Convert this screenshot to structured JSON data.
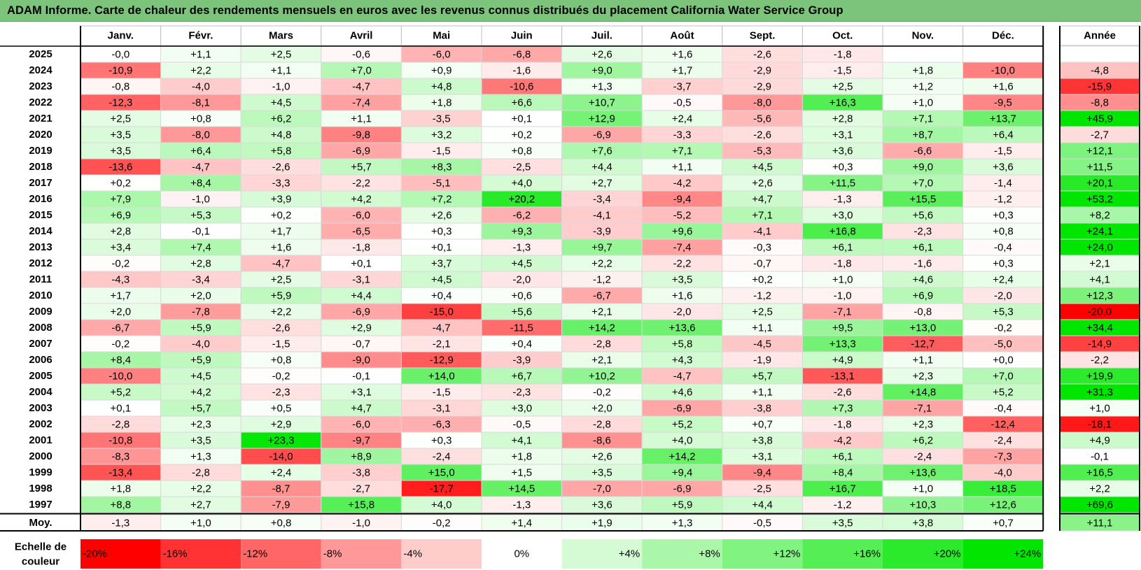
{
  "title": "ADAM Informe. Carte de chaleur des rendements mensuels en euros avec les revenus connus distribués du placement California Water Service Group",
  "chart_data": {
    "type": "heatmap",
    "title": "ADAM Informe. Carte de chaleur des rendements mensuels en euros avec les revenus connus distribués du placement California Water Service Group",
    "columns": [
      "Janv.",
      "Févr.",
      "Mars",
      "Avril",
      "Mai",
      "Juin",
      "Juil.",
      "Août",
      "Sept.",
      "Oct.",
      "Nov.",
      "Déc."
    ],
    "year_header": "Année",
    "rows": [
      {
        "label": "2025",
        "values": [
          "-0,0",
          "+1,1",
          "+2,5",
          "-0,6",
          "-6,0",
          "-6,8",
          "+2,6",
          "+1,6",
          "-2,6",
          "-1,8",
          "",
          ""
        ],
        "year": ""
      },
      {
        "label": "2024",
        "values": [
          "-10,9",
          "+2,2",
          "+1,1",
          "+7,0",
          "+0,9",
          "-1,6",
          "+9,0",
          "+1,7",
          "-2,9",
          "-1,5",
          "+1,8",
          "-10,0"
        ],
        "year": "-4,8"
      },
      {
        "label": "2023",
        "values": [
          "-0,8",
          "-4,0",
          "-1,0",
          "-4,7",
          "+4,8",
          "-10,6",
          "+1,3",
          "-3,7",
          "-2,9",
          "+2,5",
          "+1,2",
          "+1,6"
        ],
        "year": "-15,9"
      },
      {
        "label": "2022",
        "values": [
          "-12,3",
          "-8,1",
          "+4,5",
          "-7,4",
          "+1,8",
          "+6,6",
          "+10,7",
          "-0,5",
          "-8,0",
          "+16,3",
          "+1,0",
          "-9,5"
        ],
        "year": "-8,8"
      },
      {
        "label": "2021",
        "values": [
          "+2,5",
          "+0,8",
          "+6,2",
          "+1,1",
          "-3,5",
          "+0,1",
          "+12,9",
          "+2,4",
          "-5,6",
          "+2,8",
          "+7,1",
          "+13,7"
        ],
        "year": "+45,9"
      },
      {
        "label": "2020",
        "values": [
          "+3,5",
          "-8,0",
          "+4,8",
          "-9,8",
          "+3,2",
          "+0,2",
          "-6,9",
          "-3,3",
          "-2,6",
          "+3,1",
          "+8,7",
          "+6,4"
        ],
        "year": "-2,7"
      },
      {
        "label": "2019",
        "values": [
          "+3,5",
          "+6,4",
          "+5,8",
          "-6,9",
          "-1,5",
          "+0,8",
          "+7,6",
          "+7,1",
          "-5,3",
          "+3,6",
          "-6,6",
          "-1,5"
        ],
        "year": "+12,1"
      },
      {
        "label": "2018",
        "values": [
          "-13,6",
          "-4,7",
          "-2,6",
          "+5,7",
          "+8,3",
          "-2,5",
          "+4,4",
          "+1,1",
          "+4,5",
          "+0,3",
          "+9,0",
          "+3,6"
        ],
        "year": "+11,5"
      },
      {
        "label": "2017",
        "values": [
          "+0,2",
          "+8,4",
          "-3,3",
          "-2,2",
          "-5,1",
          "+4,0",
          "+2,7",
          "-4,2",
          "+2,6",
          "+11,5",
          "+7,0",
          "-1,4"
        ],
        "year": "+20,1"
      },
      {
        "label": "2016",
        "values": [
          "+7,9",
          "-1,0",
          "+3,9",
          "+4,2",
          "+7,2",
          "+20,2",
          "-3,4",
          "-9,4",
          "+4,7",
          "-1,3",
          "+15,5",
          "-1,2"
        ],
        "year": "+53,2"
      },
      {
        "label": "2015",
        "values": [
          "+6,9",
          "+5,3",
          "+0,2",
          "-6,0",
          "+2,6",
          "-6,2",
          "-4,1",
          "-5,2",
          "+7,1",
          "+3,0",
          "+5,6",
          "+0,3"
        ],
        "year": "+8,2"
      },
      {
        "label": "2014",
        "values": [
          "+2,8",
          "-0,1",
          "+1,7",
          "-6,5",
          "+0,3",
          "+9,3",
          "-3,9",
          "+9,6",
          "-4,1",
          "+16,8",
          "-2,3",
          "+0,8"
        ],
        "year": "+24,1"
      },
      {
        "label": "2013",
        "values": [
          "+3,4",
          "+7,4",
          "+1,6",
          "-1,8",
          "+0,1",
          "-1,3",
          "+9,7",
          "-7,4",
          "-0,3",
          "+6,1",
          "+6,1",
          "-0,4"
        ],
        "year": "+24,0"
      },
      {
        "label": "2012",
        "values": [
          "-0,2",
          "+2,8",
          "-4,7",
          "+0,1",
          "+3,7",
          "+4,5",
          "+2,2",
          "-2,2",
          "-0,7",
          "-1,8",
          "-1,6",
          "+0,3"
        ],
        "year": "+2,1"
      },
      {
        "label": "2011",
        "values": [
          "-4,3",
          "-3,4",
          "+2,5",
          "-3,1",
          "+4,5",
          "-2,0",
          "-1,2",
          "+3,5",
          "+0,2",
          "+1,0",
          "+4,6",
          "+2,4"
        ],
        "year": "+4,1"
      },
      {
        "label": "2010",
        "values": [
          "+1,7",
          "+2,0",
          "+5,9",
          "+4,4",
          "+0,4",
          "+0,6",
          "-6,7",
          "+1,6",
          "-1,2",
          "-1,0",
          "+6,9",
          "-2,0"
        ],
        "year": "+12,3"
      },
      {
        "label": "2009",
        "values": [
          "+2,0",
          "-7,8",
          "+2,2",
          "-6,9",
          "-15,0",
          "+5,6",
          "+2,1",
          "-2,0",
          "+2,5",
          "-7,1",
          "-0,8",
          "+5,3"
        ],
        "year": "-20,0"
      },
      {
        "label": "2008",
        "values": [
          "-6,7",
          "+5,9",
          "-2,6",
          "+2,9",
          "-4,7",
          "-11,5",
          "+14,2",
          "+13,6",
          "+1,1",
          "+9,5",
          "+13,0",
          "-0,2"
        ],
        "year": "+34,4"
      },
      {
        "label": "2007",
        "values": [
          "-0,2",
          "-4,0",
          "-1,5",
          "-0,7",
          "-2,1",
          "+0,4",
          "-2,8",
          "+5,8",
          "-4,5",
          "+13,3",
          "-12,7",
          "-5,0"
        ],
        "year": "-14,9"
      },
      {
        "label": "2006",
        "values": [
          "+8,4",
          "+5,9",
          "+0,8",
          "-9,0",
          "-12,9",
          "-3,9",
          "+2,1",
          "+4,3",
          "-1,9",
          "+4,9",
          "+1,1",
          "+0,0"
        ],
        "year": "-2,2"
      },
      {
        "label": "2005",
        "values": [
          "-10,0",
          "+4,5",
          "-0,2",
          "-0,1",
          "+14,0",
          "+6,7",
          "+10,2",
          "-4,7",
          "+5,7",
          "-13,1",
          "+2,3",
          "+7,0"
        ],
        "year": "+19,9"
      },
      {
        "label": "2004",
        "values": [
          "+5,2",
          "+4,2",
          "-2,3",
          "+3,1",
          "-1,5",
          "-2,3",
          "-0,2",
          "+4,6",
          "+1,1",
          "-2,6",
          "+14,8",
          "+5,2"
        ],
        "year": "+31,3"
      },
      {
        "label": "2003",
        "values": [
          "+0,1",
          "+5,7",
          "+0,5",
          "+4,7",
          "-3,1",
          "+3,0",
          "+2,0",
          "-6,9",
          "-3,8",
          "+7,3",
          "-7,1",
          "-0,4"
        ],
        "year": "+1,0"
      },
      {
        "label": "2002",
        "values": [
          "-2,8",
          "+2,3",
          "+2,9",
          "-6,0",
          "-6,3",
          "-0,5",
          "-2,8",
          "+5,2",
          "+0,7",
          "-1,8",
          "+2,3",
          "-12,4"
        ],
        "year": "-18,1"
      },
      {
        "label": "2001",
        "values": [
          "-10,8",
          "+3,5",
          "+23,3",
          "-9,7",
          "+0,3",
          "+4,1",
          "-8,6",
          "+4,0",
          "+3,8",
          "-4,2",
          "+6,2",
          "-2,4"
        ],
        "year": "+4,9"
      },
      {
        "label": "2000",
        "values": [
          "-8,3",
          "+1,3",
          "-14,0",
          "+8,9",
          "-2,4",
          "+1,8",
          "+2,6",
          "+14,2",
          "+3,1",
          "+6,1",
          "-2,4",
          "-7,3"
        ],
        "year": "-0,1"
      },
      {
        "label": "1999",
        "values": [
          "-13,4",
          "-2,8",
          "+2,4",
          "-3,8",
          "+15,0",
          "+1,5",
          "+3,5",
          "+9,4",
          "-9,4",
          "+8,4",
          "+13,6",
          "-4,0"
        ],
        "year": "+16,5"
      },
      {
        "label": "1998",
        "values": [
          "+1,8",
          "+2,2",
          "-8,7",
          "-2,7",
          "-17,7",
          "+14,5",
          "-7,0",
          "-6,9",
          "-2,5",
          "+16,7",
          "+1,0",
          "+18,5"
        ],
        "year": "+2,2"
      },
      {
        "label": "1997",
        "values": [
          "+8,8",
          "+2,7",
          "-7,9",
          "+15,8",
          "+4,0",
          "-1,3",
          "+3,6",
          "+5,9",
          "+4,4",
          "-1,2",
          "+10,3",
          "+12,6"
        ],
        "year": "+69,6"
      }
    ],
    "average": {
      "label": "Moy.",
      "values": [
        "-1,3",
        "+1,0",
        "+0,8",
        "-1,0",
        "-0,2",
        "+1,4",
        "+1,9",
        "+1,3",
        "-0,5",
        "+3,5",
        "+3,8",
        "+0,7"
      ],
      "year": "+11,1"
    },
    "color_scale": {
      "label": "Echelle de couleur",
      "stops": [
        "-20%",
        "-16%",
        "-12%",
        "-8%",
        "-4%",
        "0%",
        "+4%",
        "+8%",
        "+12%",
        "+16%",
        "+20%",
        "+24%"
      ],
      "stop_values": [
        -20,
        -16,
        -12,
        -8,
        -4,
        0,
        4,
        8,
        12,
        16,
        20,
        24
      ],
      "negative_color": "#ff0000",
      "neutral_color": "#ffffff",
      "positive_color": "#00e600"
    }
  }
}
